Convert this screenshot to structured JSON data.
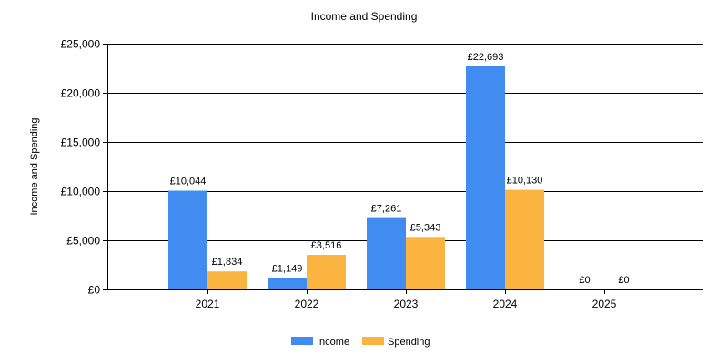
{
  "chart_data": {
    "type": "bar",
    "title": "Income and Spending",
    "ylabel": "Income and Spending",
    "xlabel": "",
    "categories": [
      "2021",
      "2022",
      "2023",
      "2024",
      "2025"
    ],
    "series": [
      {
        "name": "Income",
        "color": "#418CF0",
        "values": [
          10044,
          1149,
          7261,
          22693,
          0
        ],
        "labels": [
          "£10,044",
          "£1,149",
          "£7,261",
          "£22,693",
          "£0"
        ]
      },
      {
        "name": "Spending",
        "color": "#FCB441",
        "values": [
          1834,
          3516,
          5343,
          10130,
          0
        ],
        "labels": [
          "£1,834",
          "£3,516",
          "£5,343",
          "£10,130",
          "£0"
        ]
      }
    ],
    "ylim": [
      0,
      25000
    ],
    "yticks": [
      0,
      5000,
      10000,
      15000,
      20000,
      25000
    ],
    "ytick_labels": [
      "£0",
      "£5,000",
      "£10,000",
      "£15,000",
      "£20,000",
      "£25,000"
    ],
    "grid": true,
    "legend_position": "bottom-center"
  }
}
